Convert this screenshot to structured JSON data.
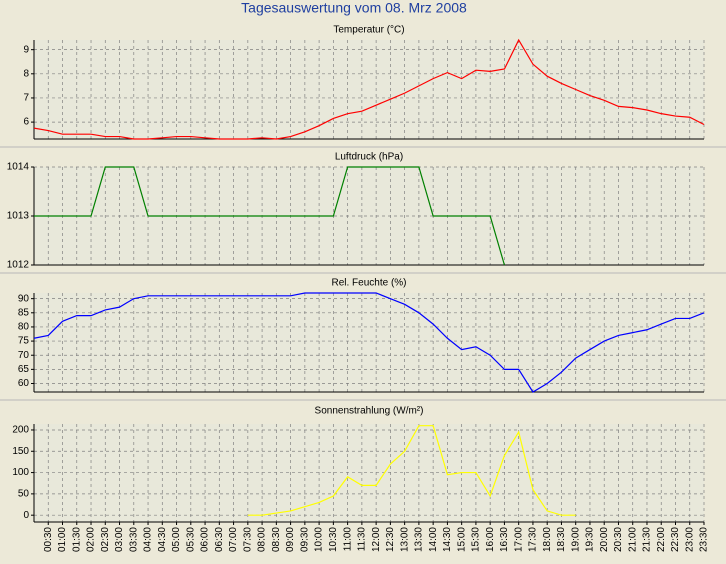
{
  "title": "Tagesauswertung vom 08. Mrz 2008",
  "chart_data": [
    {
      "type": "line",
      "title": "Temperatur (°C)",
      "color": "#ff0000",
      "grid": true,
      "ylim": [
        5.3,
        9.4
      ],
      "yticks": [
        6,
        7,
        8,
        9
      ],
      "values": [
        5.75,
        5.65,
        5.5,
        5.5,
        5.5,
        5.4,
        5.4,
        5.3,
        5.3,
        5.35,
        5.4,
        5.4,
        5.35,
        5.3,
        5.3,
        5.3,
        5.35,
        5.3,
        5.4,
        5.6,
        5.85,
        6.15,
        6.35,
        6.45,
        6.7,
        6.95,
        7.2,
        7.5,
        7.8,
        8.05,
        7.8,
        8.15,
        8.1,
        8.2,
        9.4,
        8.4,
        7.9,
        7.6,
        7.35,
        7.1,
        6.9,
        6.65,
        6.6,
        6.5,
        6.35,
        6.25,
        6.2,
        5.9
      ]
    },
    {
      "type": "line",
      "title": "Luftdruck (hPa)",
      "color": "#008000",
      "grid": true,
      "ylim": [
        1012,
        1014
      ],
      "yticks": [
        1012,
        1013,
        1014
      ],
      "values": [
        1013,
        1013,
        1013,
        1013,
        1013,
        1014,
        1014,
        1014,
        1013,
        1013,
        1013,
        1013,
        1013,
        1013,
        1013,
        1013,
        1013,
        1013,
        1013,
        1013,
        1013,
        1013,
        1014,
        1014,
        1014,
        1014,
        1014,
        1014,
        1013,
        1013,
        1013,
        1013,
        1013,
        1012,
        null,
        null,
        null,
        null,
        null,
        null,
        null,
        null,
        null,
        null,
        null,
        null,
        null,
        null
      ]
    },
    {
      "type": "line",
      "title": "Rel. Feuchte (%)",
      "color": "#0000ff",
      "grid": true,
      "ylim": [
        57,
        92
      ],
      "yticks": [
        60,
        65,
        70,
        75,
        80,
        85,
        90
      ],
      "values": [
        76,
        77,
        82,
        84,
        84,
        86,
        87,
        90,
        91,
        91,
        91,
        91,
        91,
        91,
        91,
        91,
        91,
        91,
        91,
        92,
        92,
        92,
        92,
        92,
        92,
        90,
        88,
        85,
        81,
        76,
        72,
        73,
        70,
        65,
        65,
        57,
        60,
        64,
        69,
        72,
        75,
        77,
        78,
        79,
        81,
        83,
        83,
        85
      ]
    },
    {
      "type": "line",
      "title": "Sonnenstrahlung (W/m²)",
      "color": "#ffff00",
      "grid": true,
      "ylim": [
        -16,
        214
      ],
      "yticks": [
        0,
        50,
        100,
        150,
        200
      ],
      "categories": [
        null,
        "00:30",
        "01:00",
        "01:30",
        "02:00",
        "02:30",
        "03:00",
        "03:30",
        "04:00",
        "04:30",
        "05:00",
        "05:30",
        "06:00",
        "06:30",
        "07:00",
        "07:30",
        "08:00",
        "08:30",
        "09:00",
        "09:30",
        "10:00",
        "10:30",
        "11:00",
        "11:30",
        "12:00",
        "12:30",
        "13:00",
        "13:30",
        "14:00",
        "14:30",
        "15:00",
        "15:30",
        "16:00",
        "16:30",
        "17:00",
        "17:30",
        "18:00",
        "18:30",
        "19:00",
        "19:30",
        "20:00",
        "20:30",
        "21:00",
        "21:30",
        "22:00",
        "22:30",
        "23:00",
        "23:30"
      ],
      "values": [
        null,
        null,
        null,
        null,
        null,
        null,
        null,
        null,
        null,
        null,
        null,
        null,
        null,
        null,
        null,
        0,
        0,
        5,
        10,
        20,
        30,
        45,
        90,
        70,
        70,
        120,
        150,
        210,
        210,
        95,
        100,
        100,
        45,
        140,
        195,
        60,
        10,
        0,
        0,
        null,
        null,
        null,
        null,
        null,
        null,
        null,
        null,
        null
      ]
    }
  ]
}
